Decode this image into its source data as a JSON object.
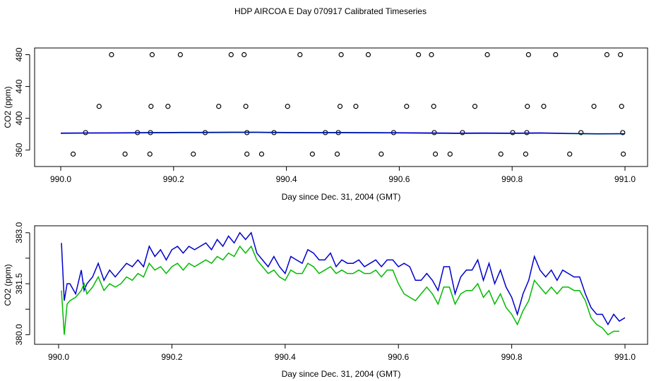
{
  "title": "HDP AIRCOA E  Day 070917  Calibrated Timeseries",
  "chart_data": [
    {
      "type": "scatter",
      "xlabel": "Day since Dec. 31, 2004 (GMT)",
      "ylabel": "CO2 (ppm)",
      "xlim": [
        990.0,
        991.0
      ],
      "ylim": [
        350,
        484
      ],
      "x_ticks": [
        990.0,
        990.2,
        990.4,
        990.6,
        990.8,
        991.0
      ],
      "x_tick_labels": [
        "990.0",
        "990.2",
        "990.4",
        "990.6",
        "990.8",
        "991.0"
      ],
      "y_ticks": [
        360,
        400,
        440,
        480
      ],
      "y_tick_labels": [
        "360",
        "400",
        "440",
        "480"
      ],
      "grid": false,
      "series": [
        {
          "color": "#000000",
          "marker": "open-circle",
          "points": [
            [
              990.09,
              480
            ],
            [
              990.162,
              480
            ],
            [
              990.212,
              480
            ],
            [
              990.302,
              480
            ],
            [
              990.325,
              480
            ],
            [
              990.424,
              480
            ],
            [
              990.497,
              480
            ],
            [
              990.545,
              480
            ],
            [
              990.634,
              480
            ],
            [
              990.657,
              480
            ],
            [
              990.756,
              480
            ],
            [
              990.829,
              480
            ],
            [
              990.877,
              480
            ],
            [
              990.968,
              480
            ],
            [
              990.992,
              480
            ],
            [
              990.068,
              415
            ],
            [
              990.16,
              415
            ],
            [
              990.19,
              415
            ],
            [
              990.28,
              415
            ],
            [
              990.328,
              415
            ],
            [
              990.402,
              415
            ],
            [
              990.495,
              415
            ],
            [
              990.523,
              415
            ],
            [
              990.613,
              415
            ],
            [
              990.661,
              415
            ],
            [
              990.734,
              415
            ],
            [
              990.827,
              415
            ],
            [
              990.856,
              415
            ],
            [
              990.945,
              415
            ],
            [
              990.994,
              415
            ],
            [
              990.044,
              382
            ],
            [
              990.136,
              382
            ],
            [
              990.159,
              382
            ],
            [
              990.256,
              382
            ],
            [
              990.33,
              382
            ],
            [
              990.378,
              382
            ],
            [
              990.469,
              382
            ],
            [
              990.492,
              382
            ],
            [
              990.59,
              382
            ],
            [
              990.662,
              382
            ],
            [
              990.712,
              382
            ],
            [
              990.801,
              382
            ],
            [
              990.826,
              382
            ],
            [
              990.922,
              382
            ],
            [
              990.996,
              382
            ],
            [
              990.022,
              355
            ],
            [
              990.114,
              355
            ],
            [
              990.158,
              355
            ],
            [
              990.235,
              355
            ],
            [
              990.33,
              355
            ],
            [
              990.356,
              355
            ],
            [
              990.446,
              355
            ],
            [
              990.49,
              355
            ],
            [
              990.568,
              355
            ],
            [
              990.664,
              355
            ],
            [
              990.69,
              355
            ],
            [
              990.78,
              355
            ],
            [
              990.824,
              355
            ],
            [
              990.902,
              355
            ],
            [
              990.997,
              355
            ]
          ]
        },
        {
          "color": "#00bb00",
          "type": "line",
          "x": [
            990.0,
            990.05,
            990.1,
            990.15,
            990.2,
            990.25,
            990.3,
            990.35,
            990.4,
            990.45,
            990.5,
            990.55,
            990.6,
            990.65,
            990.7,
            990.75,
            990.8,
            990.85,
            990.9,
            990.95,
            991.0
          ],
          "y": [
            381.0,
            381.2,
            381.4,
            381.6,
            381.8,
            381.9,
            382.0,
            382.1,
            381.7,
            381.6,
            381.7,
            381.6,
            381.5,
            381.1,
            380.9,
            381.0,
            380.8,
            381.2,
            380.7,
            380.3,
            380.5
          ]
        },
        {
          "color": "#0000cc",
          "type": "line",
          "x": [
            990.0,
            990.05,
            990.1,
            990.15,
            990.2,
            990.25,
            990.3,
            990.35,
            990.4,
            990.45,
            990.5,
            990.55,
            990.6,
            990.65,
            990.7,
            990.75,
            990.8,
            990.85,
            990.9,
            990.95,
            991.0
          ],
          "y": [
            381.4,
            381.6,
            381.8,
            382.0,
            382.2,
            382.3,
            382.5,
            382.5,
            382.1,
            382.0,
            382.1,
            382.0,
            381.9,
            381.6,
            381.3,
            381.5,
            381.2,
            381.6,
            381.0,
            380.5,
            380.6
          ]
        }
      ]
    },
    {
      "type": "line",
      "xlabel": "Day since Dec. 31, 2004 (GMT)",
      "ylabel": "CO2 (ppm)",
      "xlim": [
        990.0,
        991.0
      ],
      "ylim": [
        379.8,
        383.1
      ],
      "x_ticks": [
        990.0,
        990.2,
        990.4,
        990.6,
        990.8,
        991.0
      ],
      "x_tick_labels": [
        "990.0",
        "990.2",
        "990.4",
        "990.6",
        "990.8",
        "991.0"
      ],
      "y_ticks": [
        380.0,
        381.5,
        383.0
      ],
      "y_tick_labels": [
        "380.0",
        "381.5",
        "383.0"
      ],
      "y_minor_ticks": [
        380.75,
        382.25
      ],
      "grid": false,
      "series": [
        {
          "color": "#0000cc",
          "x": [
            990.005,
            990.01,
            990.015,
            990.02,
            990.03,
            990.04,
            990.045,
            990.05,
            990.06,
            990.07,
            990.08,
            990.09,
            990.1,
            990.11,
            990.12,
            990.13,
            990.14,
            990.15,
            990.16,
            990.17,
            990.18,
            990.19,
            990.2,
            990.21,
            990.22,
            990.23,
            990.24,
            990.25,
            990.26,
            990.27,
            990.28,
            990.29,
            990.3,
            990.31,
            990.32,
            990.33,
            990.34,
            990.35,
            990.36,
            990.37,
            990.38,
            990.39,
            990.4,
            990.41,
            990.42,
            990.43,
            990.44,
            990.45,
            990.46,
            990.47,
            990.48,
            990.49,
            990.5,
            990.51,
            990.52,
            990.53,
            990.54,
            990.55,
            990.56,
            990.57,
            990.58,
            990.59,
            990.6,
            990.61,
            990.62,
            990.63,
            990.64,
            990.65,
            990.66,
            990.67,
            990.68,
            990.69,
            990.7,
            990.71,
            990.72,
            990.73,
            990.74,
            990.75,
            990.76,
            990.77,
            990.78,
            990.79,
            990.8,
            990.81,
            990.82,
            990.83,
            990.84,
            990.85,
            990.86,
            990.87,
            990.88,
            990.89,
            990.9,
            990.91,
            990.92,
            990.93,
            990.94,
            990.95,
            990.96,
            990.97,
            990.98,
            990.99,
            991.0
          ],
          "y": [
            382.7,
            381.0,
            381.5,
            381.5,
            381.2,
            381.9,
            381.3,
            381.5,
            381.7,
            382.1,
            381.6,
            381.9,
            381.7,
            381.9,
            382.1,
            382.0,
            382.2,
            382.0,
            382.6,
            382.3,
            382.5,
            382.2,
            382.5,
            382.6,
            382.4,
            382.6,
            382.5,
            382.6,
            382.7,
            382.5,
            382.8,
            382.6,
            382.9,
            382.7,
            383.0,
            382.8,
            383.0,
            382.4,
            382.2,
            382.0,
            382.3,
            382.0,
            381.8,
            382.3,
            382.2,
            382.1,
            382.5,
            382.4,
            382.2,
            382.2,
            382.4,
            382.0,
            382.2,
            382.1,
            382.1,
            382.2,
            382.0,
            382.1,
            382.2,
            382.0,
            382.2,
            382.2,
            382.0,
            382.1,
            382.0,
            381.6,
            381.6,
            381.8,
            381.6,
            381.3,
            382.0,
            382.0,
            381.2,
            381.7,
            381.9,
            381.9,
            382.2,
            381.6,
            382.1,
            381.5,
            381.9,
            381.4,
            381.1,
            380.6,
            381.2,
            381.6,
            382.3,
            381.9,
            381.7,
            381.9,
            381.6,
            381.9,
            381.8,
            381.7,
            381.7,
            381.2,
            380.8,
            380.6,
            380.6,
            380.3,
            380.6,
            380.4,
            380.5
          ]
        },
        {
          "color": "#00bb00",
          "x": [
            990.005,
            990.01,
            990.015,
            990.02,
            990.03,
            990.04,
            990.045,
            990.05,
            990.06,
            990.07,
            990.08,
            990.09,
            990.1,
            990.11,
            990.12,
            990.13,
            990.14,
            990.15,
            990.16,
            990.17,
            990.18,
            990.19,
            990.2,
            990.21,
            990.22,
            990.23,
            990.24,
            990.25,
            990.26,
            990.27,
            990.28,
            990.29,
            990.3,
            990.31,
            990.32,
            990.33,
            990.34,
            990.35,
            990.36,
            990.37,
            990.38,
            990.39,
            990.4,
            990.41,
            990.42,
            990.43,
            990.44,
            990.45,
            990.46,
            990.47,
            990.48,
            990.49,
            990.5,
            990.51,
            990.52,
            990.53,
            990.54,
            990.55,
            990.56,
            990.57,
            990.58,
            990.59,
            990.6,
            990.61,
            990.62,
            990.63,
            990.64,
            990.65,
            990.66,
            990.67,
            990.68,
            990.69,
            990.7,
            990.71,
            990.72,
            990.73,
            990.74,
            990.75,
            990.76,
            990.77,
            990.78,
            990.79,
            990.8,
            990.81,
            990.82,
            990.83,
            990.84,
            990.85,
            990.86,
            990.87,
            990.88,
            990.89,
            990.9,
            990.91,
            990.92,
            990.93,
            990.94,
            990.95,
            990.96,
            990.97,
            990.98,
            990.99
          ],
          "y": [
            381.3,
            380.0,
            380.9,
            381.0,
            381.1,
            381.3,
            381.5,
            381.2,
            381.4,
            381.7,
            381.3,
            381.5,
            381.4,
            381.5,
            381.7,
            381.6,
            381.8,
            381.7,
            382.1,
            381.9,
            382.0,
            381.8,
            382.0,
            382.1,
            381.9,
            382.1,
            382.0,
            382.1,
            382.2,
            382.1,
            382.3,
            382.2,
            382.4,
            382.3,
            382.6,
            382.4,
            382.6,
            382.2,
            382.0,
            381.8,
            381.9,
            381.7,
            381.6,
            381.9,
            381.8,
            381.8,
            382.1,
            382.0,
            381.8,
            381.9,
            382.0,
            381.8,
            381.9,
            381.8,
            381.8,
            381.9,
            381.8,
            381.8,
            381.9,
            381.7,
            381.9,
            381.9,
            381.5,
            381.2,
            381.1,
            381.0,
            381.2,
            381.4,
            381.2,
            380.9,
            381.4,
            381.4,
            380.9,
            381.2,
            381.3,
            381.3,
            381.5,
            381.1,
            381.3,
            380.9,
            381.2,
            380.8,
            380.6,
            380.3,
            380.7,
            381.0,
            381.6,
            381.4,
            381.2,
            381.4,
            381.2,
            381.4,
            381.4,
            381.3,
            381.3,
            381.0,
            380.5,
            380.3,
            380.2,
            380.0,
            380.1,
            380.1
          ]
        }
      ]
    }
  ]
}
